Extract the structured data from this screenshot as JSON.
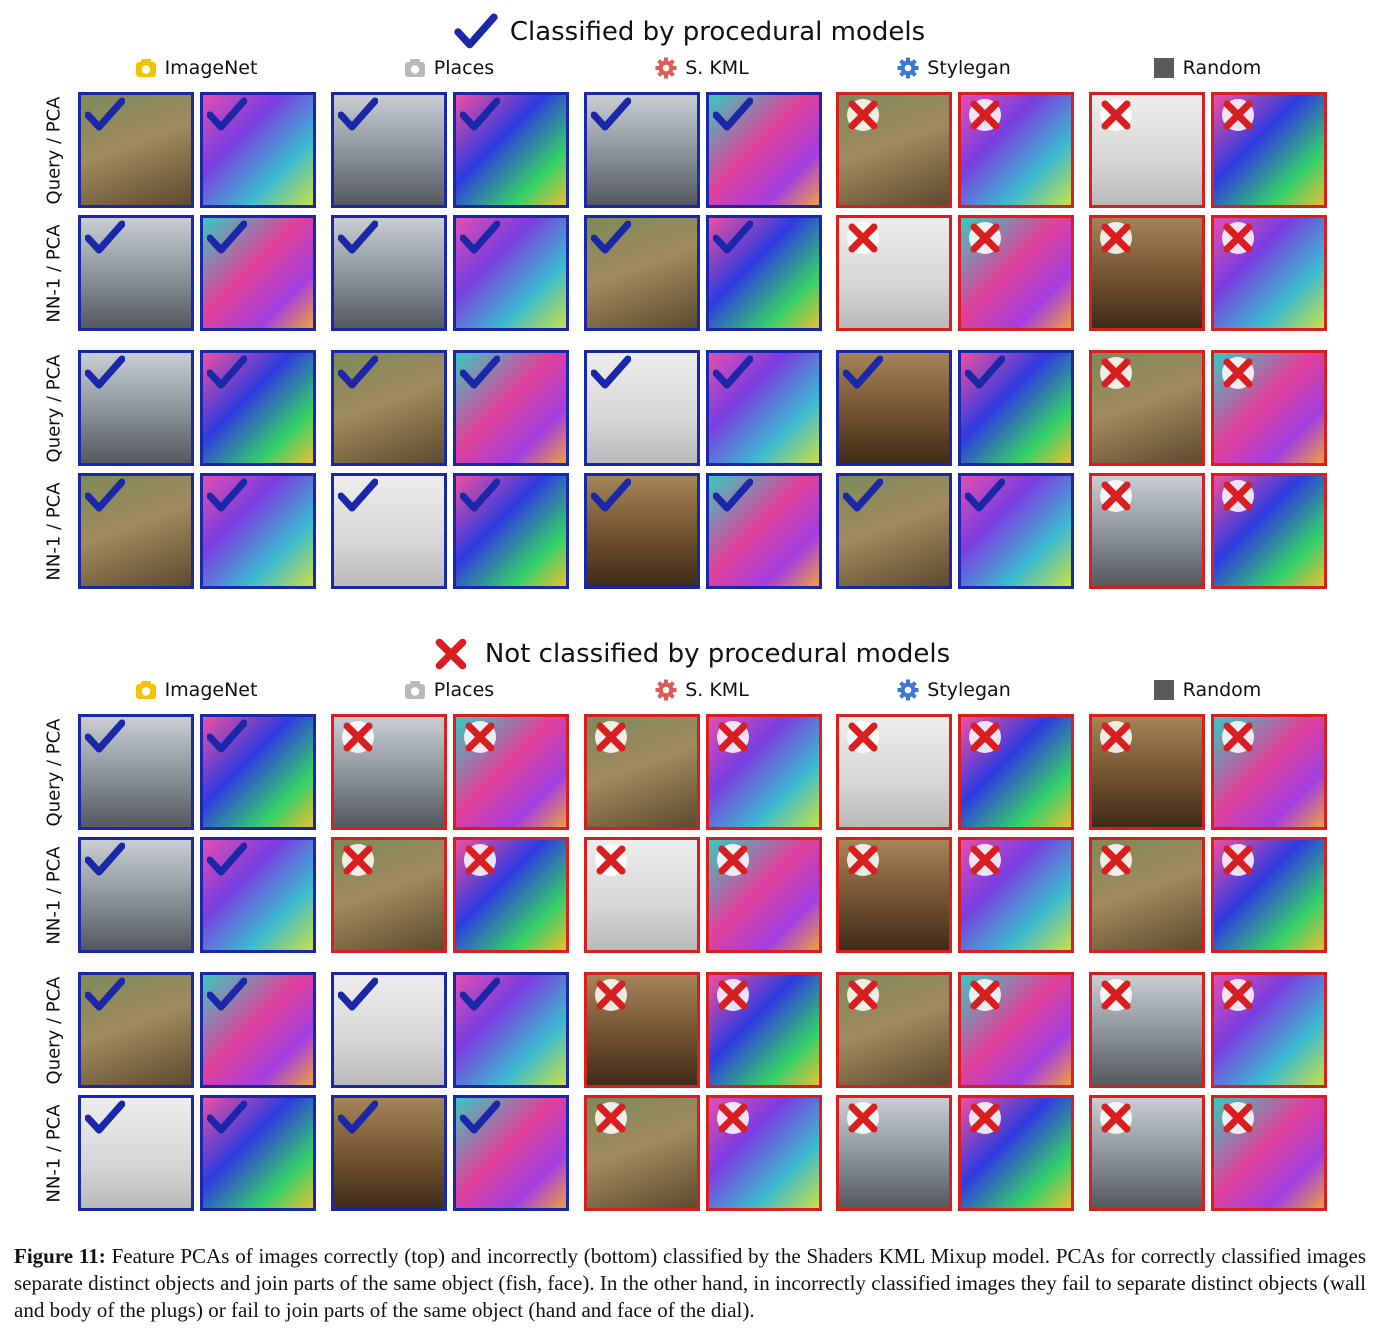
{
  "sections": [
    {
      "title": "Classified by procedural models",
      "title_mark": "check",
      "columns": [
        {
          "label": "ImageNet",
          "icon": "imagenet-icon"
        },
        {
          "label": "Places",
          "icon": "camera-icon"
        },
        {
          "label": "S. KML",
          "icon": "gear-red-icon"
        },
        {
          "label": "Stylegan",
          "icon": "gear-blue-icon"
        },
        {
          "label": "Random",
          "icon": "gray-square-icon"
        }
      ],
      "row_labels": [
        "Query / PCA",
        "NN-1 / PCA",
        "Query / PCA",
        "NN-1 / PCA"
      ],
      "marks": [
        [
          "check",
          "check",
          "check",
          "x",
          "x"
        ],
        [
          "check",
          "check",
          "check",
          "x",
          "x"
        ],
        [
          "check",
          "check",
          "check",
          "check",
          "x"
        ],
        [
          "check",
          "check",
          "check",
          "check",
          "x"
        ]
      ]
    },
    {
      "title": "Not classified by procedural models",
      "title_mark": "x",
      "columns": [
        {
          "label": "ImageNet",
          "icon": "imagenet-icon"
        },
        {
          "label": "Places",
          "icon": "camera-icon"
        },
        {
          "label": "S. KML",
          "icon": "gear-red-icon"
        },
        {
          "label": "Stylegan",
          "icon": "gear-blue-icon"
        },
        {
          "label": "Random",
          "icon": "gray-square-icon"
        }
      ],
      "row_labels": [
        "Query / PCA",
        "NN-1 / PCA",
        "Query / PCA",
        "NN-1 / PCA"
      ],
      "marks": [
        [
          "check",
          "x",
          "x",
          "x",
          "x"
        ],
        [
          "check",
          "x",
          "x",
          "x",
          "x"
        ],
        [
          "check",
          "check",
          "x",
          "x",
          "x"
        ],
        [
          "check",
          "check",
          "x",
          "x",
          "x"
        ]
      ]
    }
  ],
  "caption": {
    "label": "Figure 11:",
    "text": "Feature PCAs of images correctly (top) and incorrectly (bottom) classified by the Shaders KML Mixup model. PCAs for correctly classified images separate distinct objects and join parts of the same object (fish, face). In the other hand, in incorrectly classified images they fail to separate distinct objects (wall and body of the plugs) or fail to join parts of the same object (hand and face of the dial)."
  },
  "colors": {
    "correct_border": "#1a27a8",
    "incorrect_border": "#d81e1e",
    "check_mark": "#1a27a8",
    "x_mark": "#d81e1e"
  }
}
